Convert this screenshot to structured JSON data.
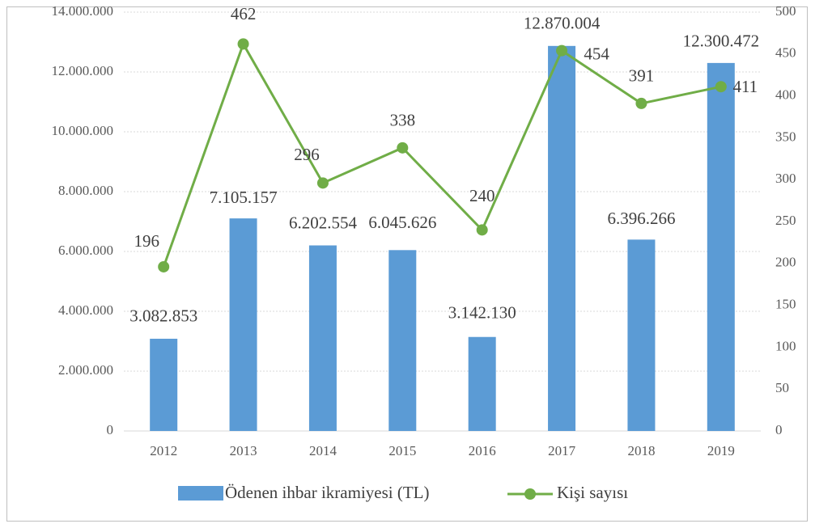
{
  "chart_data": {
    "type": "combo",
    "categories": [
      "2012",
      "2013",
      "2014",
      "2015",
      "2016",
      "2017",
      "2018",
      "2019"
    ],
    "series": [
      {
        "name": "Ödenen ihbar ikramiyesi (TL)",
        "type": "bar",
        "color": "#5b9bd5",
        "values": [
          3082853,
          7105157,
          6202554,
          6045626,
          3142130,
          12870004,
          6396266,
          12300472
        ],
        "value_labels": [
          "3.082.853",
          "7.105.157",
          "6.202.554",
          "6.045.626",
          "3.142.130",
          "12.870.004",
          "6.396.266",
          "12.300.472"
        ]
      },
      {
        "name": "Kişi sayısı",
        "type": "line",
        "axis": "y2",
        "color": "#70ad47",
        "values": [
          196,
          462,
          296,
          338,
          240,
          454,
          391,
          411
        ]
      }
    ],
    "ylim": [
      0,
      14000000
    ],
    "yticks": [
      0,
      {
        "value": 2000000,
        "label": "2.000.000"
      },
      {
        "value": 4000000,
        "label": "4.000.000"
      },
      {
        "value": 6000000,
        "label": "6.000.000"
      },
      {
        "value": 8000000,
        "label": "8.000.000"
      },
      {
        "value": 10000000,
        "label": "10.000.000"
      },
      {
        "value": 12000000,
        "label": "12.000.000"
      },
      {
        "value": 14000000,
        "label": "14.000.000"
      }
    ],
    "y2lim": [
      0,
      500
    ],
    "y2ticks": [
      0,
      50,
      100,
      150,
      200,
      250,
      300,
      350,
      400,
      450,
      500
    ],
    "grid": true,
    "legend": "bottom"
  }
}
